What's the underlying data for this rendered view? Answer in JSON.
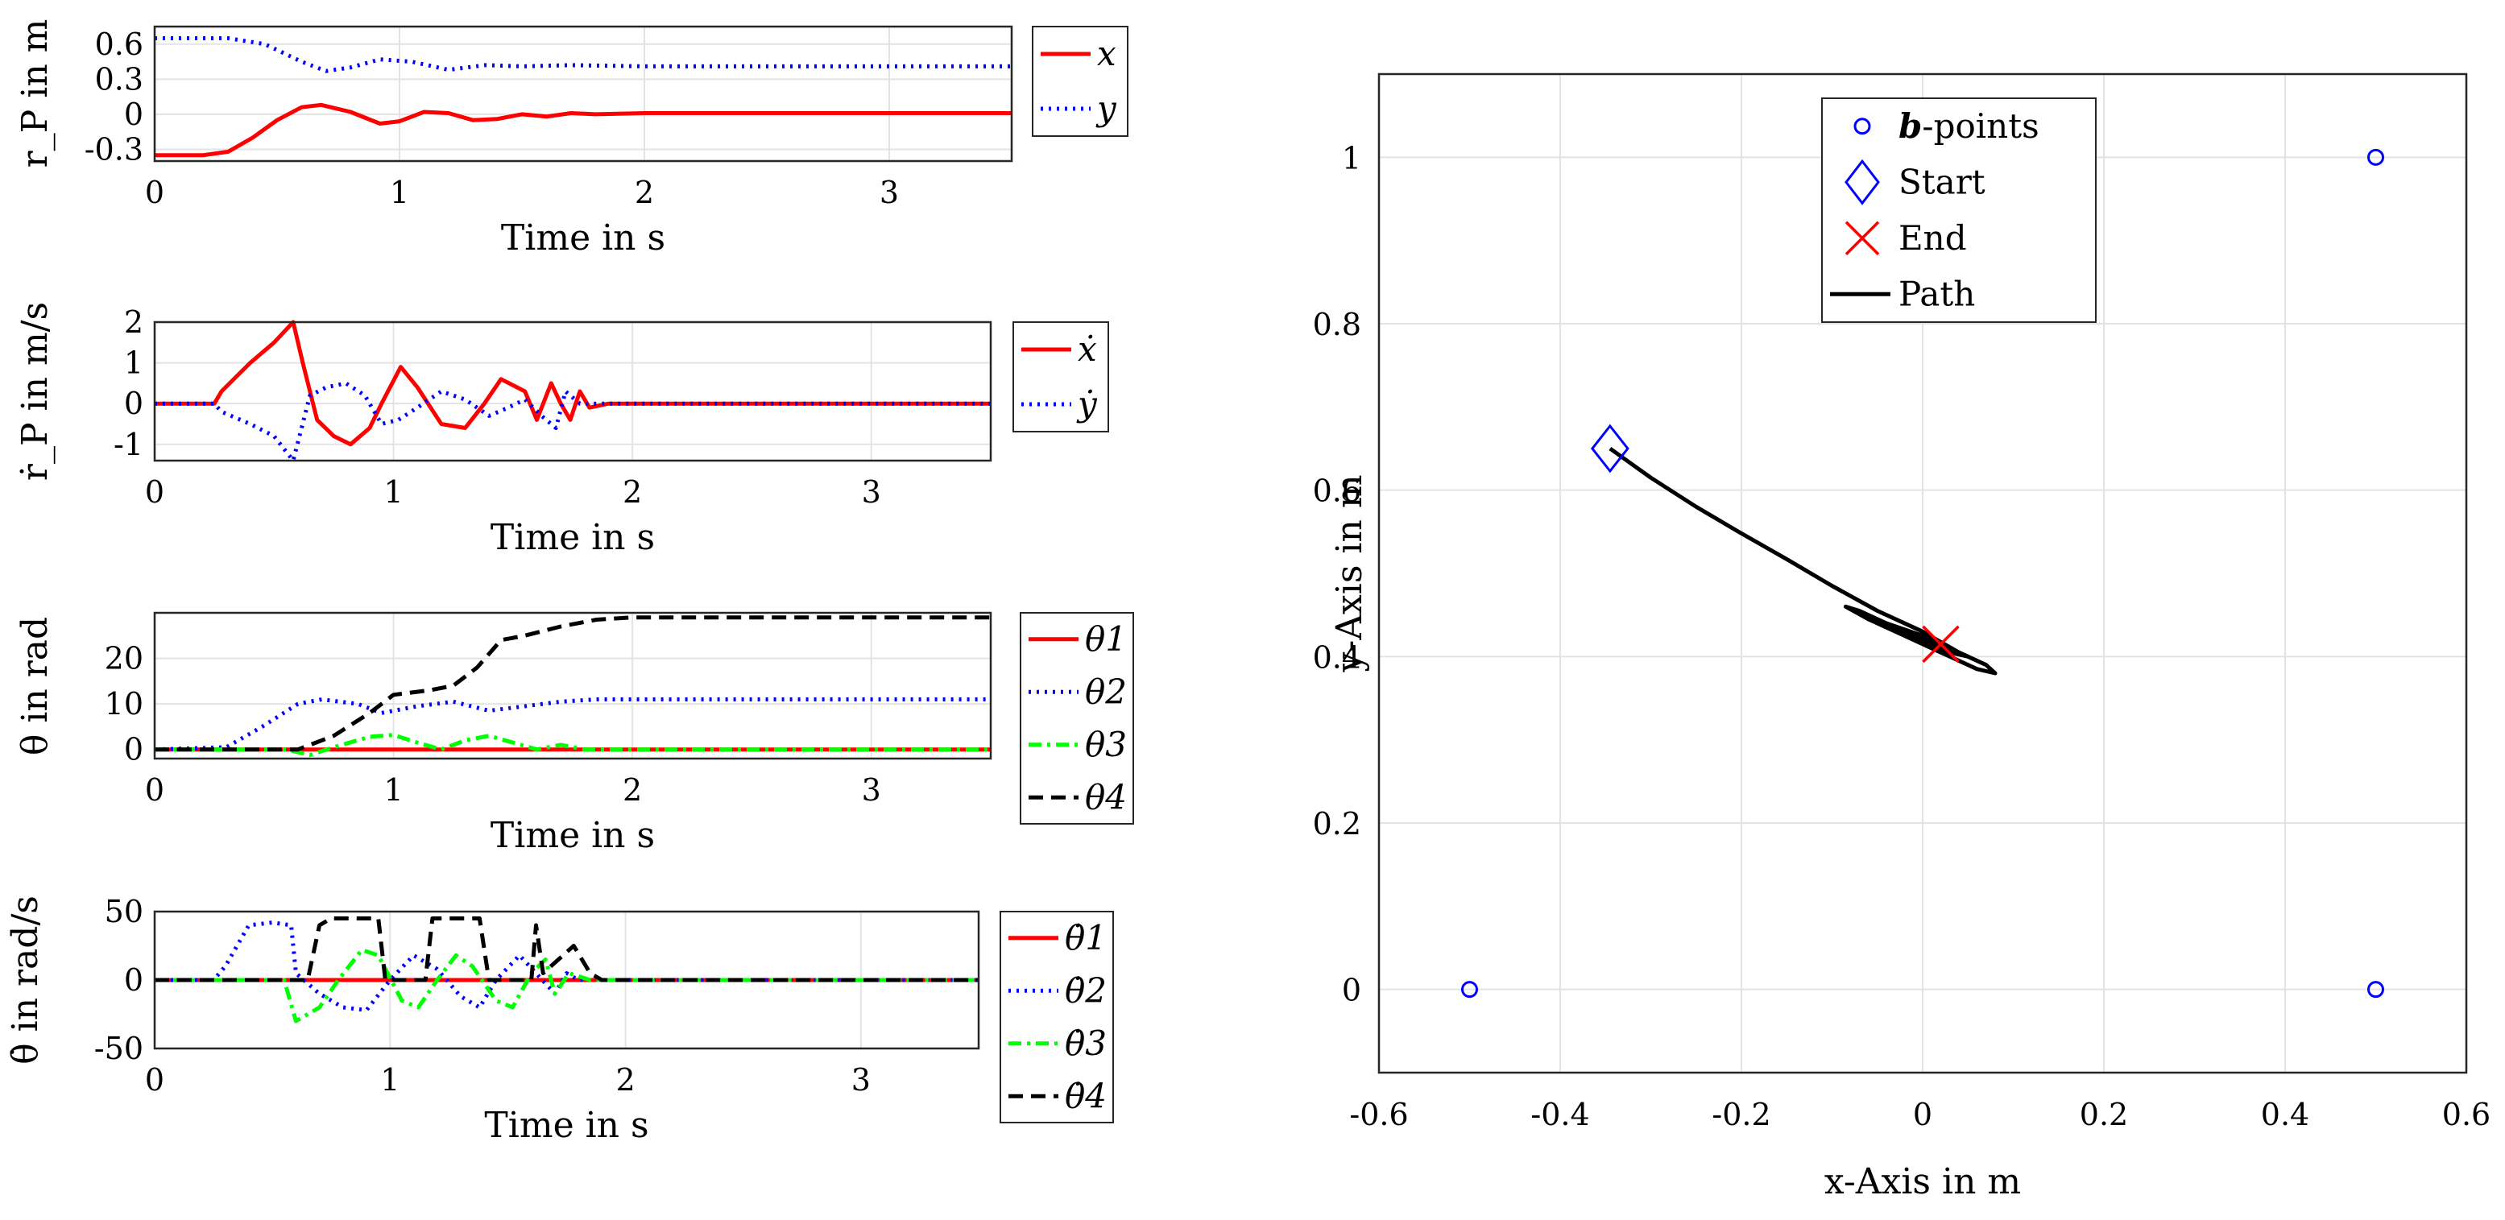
{
  "chart_data": [
    {
      "id": "rp",
      "type": "line",
      "ylabel": "r_P in m",
      "xlabel": "Time in s",
      "xlim": [
        0,
        3.5
      ],
      "ylim": [
        -0.4,
        0.75
      ],
      "xticks": [
        "0",
        "1",
        "2",
        "3"
      ],
      "yticks": [
        "-0.3",
        "0",
        "0.3",
        "0.6"
      ],
      "series": [
        {
          "name": "x",
          "color": "#ff0000",
          "style": "solid",
          "points": [
            [
              0,
              -0.35
            ],
            [
              0.2,
              -0.35
            ],
            [
              0.3,
              -0.32
            ],
            [
              0.4,
              -0.2
            ],
            [
              0.5,
              -0.05
            ],
            [
              0.6,
              0.06
            ],
            [
              0.68,
              0.08
            ],
            [
              0.8,
              0.02
            ],
            [
              0.92,
              -0.08
            ],
            [
              1.0,
              -0.06
            ],
            [
              1.1,
              0.02
            ],
            [
              1.2,
              0.01
            ],
            [
              1.3,
              -0.05
            ],
            [
              1.4,
              -0.04
            ],
            [
              1.5,
              0.0
            ],
            [
              1.6,
              -0.02
            ],
            [
              1.7,
              0.01
            ],
            [
              1.8,
              0.0
            ],
            [
              2.0,
              0.01
            ],
            [
              3.5,
              0.01
            ]
          ]
        },
        {
          "name": "y",
          "color": "#0000ff",
          "style": "dotted",
          "points": [
            [
              0,
              0.65
            ],
            [
              0.3,
              0.65
            ],
            [
              0.45,
              0.6
            ],
            [
              0.6,
              0.45
            ],
            [
              0.7,
              0.37
            ],
            [
              0.8,
              0.4
            ],
            [
              0.92,
              0.47
            ],
            [
              1.05,
              0.45
            ],
            [
              1.2,
              0.38
            ],
            [
              1.35,
              0.42
            ],
            [
              1.5,
              0.41
            ],
            [
              1.7,
              0.42
            ],
            [
              2.0,
              0.41
            ],
            [
              3.5,
              0.41
            ]
          ]
        }
      ]
    },
    {
      "id": "rpdot",
      "type": "line",
      "ylabel": "ṙ_P in m/s",
      "xlabel": "Time in s",
      "xlim": [
        0,
        3.5
      ],
      "ylim": [
        -1.4,
        2.0
      ],
      "xticks": [
        "0",
        "1",
        "2",
        "3"
      ],
      "yticks": [
        "-1",
        "0",
        "1",
        "2"
      ],
      "series": [
        {
          "name": "ẋ",
          "color": "#ff0000",
          "style": "solid",
          "points": [
            [
              0,
              0
            ],
            [
              0.25,
              0
            ],
            [
              0.28,
              0.3
            ],
            [
              0.4,
              1.0
            ],
            [
              0.5,
              1.5
            ],
            [
              0.58,
              2.0
            ],
            [
              0.62,
              1.0
            ],
            [
              0.68,
              -0.4
            ],
            [
              0.75,
              -0.8
            ],
            [
              0.82,
              -1.0
            ],
            [
              0.9,
              -0.6
            ],
            [
              0.95,
              0.0
            ],
            [
              1.03,
              0.9
            ],
            [
              1.1,
              0.4
            ],
            [
              1.2,
              -0.5
            ],
            [
              1.3,
              -0.6
            ],
            [
              1.38,
              0.0
            ],
            [
              1.45,
              0.6
            ],
            [
              1.55,
              0.3
            ],
            [
              1.6,
              -0.4
            ],
            [
              1.66,
              0.5
            ],
            [
              1.7,
              0.0
            ],
            [
              1.74,
              -0.4
            ],
            [
              1.78,
              0.3
            ],
            [
              1.82,
              -0.1
            ],
            [
              1.9,
              0.0
            ],
            [
              3.5,
              0.0
            ]
          ]
        },
        {
          "name": "ẏ",
          "color": "#0000ff",
          "style": "dotted",
          "points": [
            [
              0,
              0
            ],
            [
              0.25,
              0
            ],
            [
              0.28,
              -0.2
            ],
            [
              0.4,
              -0.5
            ],
            [
              0.5,
              -0.8
            ],
            [
              0.58,
              -1.4
            ],
            [
              0.65,
              0.2
            ],
            [
              0.72,
              0.4
            ],
            [
              0.8,
              0.5
            ],
            [
              0.88,
              0.2
            ],
            [
              0.95,
              -0.5
            ],
            [
              1.02,
              -0.4
            ],
            [
              1.1,
              -0.1
            ],
            [
              1.2,
              0.3
            ],
            [
              1.3,
              0.1
            ],
            [
              1.4,
              -0.3
            ],
            [
              1.48,
              -0.1
            ],
            [
              1.55,
              0.1
            ],
            [
              1.62,
              -0.3
            ],
            [
              1.68,
              -0.6
            ],
            [
              1.72,
              0.3
            ],
            [
              1.78,
              0.0
            ],
            [
              1.85,
              0.0
            ],
            [
              3.5,
              0.0
            ]
          ]
        }
      ]
    },
    {
      "id": "theta",
      "type": "line",
      "ylabel": "θ in rad",
      "xlabel": "Time in s",
      "xlim": [
        0,
        3.5
      ],
      "ylim": [
        -2,
        30
      ],
      "xticks": [
        "0",
        "1",
        "2",
        "3"
      ],
      "yticks": [
        "0",
        "10",
        "20"
      ],
      "series": [
        {
          "name": "θ1",
          "color": "#ff0000",
          "style": "solid",
          "points": [
            [
              0,
              0
            ],
            [
              3.5,
              0
            ]
          ]
        },
        {
          "name": "θ2",
          "color": "#0000ff",
          "style": "dotted",
          "points": [
            [
              0,
              0
            ],
            [
              0.3,
              0.5
            ],
            [
              0.45,
              5
            ],
            [
              0.6,
              10
            ],
            [
              0.7,
              11
            ],
            [
              0.85,
              10
            ],
            [
              0.95,
              8
            ],
            [
              1.1,
              9.5
            ],
            [
              1.25,
              10.5
            ],
            [
              1.4,
              8.5
            ],
            [
              1.55,
              9.5
            ],
            [
              1.7,
              10.5
            ],
            [
              1.85,
              11
            ],
            [
              2.0,
              11
            ],
            [
              3.5,
              11
            ]
          ]
        },
        {
          "name": "θ3",
          "color": "#00ff00",
          "style": "dashdot",
          "points": [
            [
              0,
              0
            ],
            [
              0.55,
              0
            ],
            [
              0.65,
              -1.2
            ],
            [
              0.75,
              0.5
            ],
            [
              0.9,
              2.8
            ],
            [
              1.0,
              3.2
            ],
            [
              1.1,
              1.5
            ],
            [
              1.2,
              0
            ],
            [
              1.3,
              2
            ],
            [
              1.4,
              3
            ],
            [
              1.5,
              1.5
            ],
            [
              1.6,
              0
            ],
            [
              1.7,
              1
            ],
            [
              1.8,
              0
            ],
            [
              3.5,
              0
            ]
          ]
        },
        {
          "name": "θ4",
          "color": "#000000",
          "style": "dashed",
          "points": [
            [
              0,
              0
            ],
            [
              0.6,
              0
            ],
            [
              0.75,
              3
            ],
            [
              0.9,
              8
            ],
            [
              1.0,
              12
            ],
            [
              1.15,
              13
            ],
            [
              1.25,
              14
            ],
            [
              1.35,
              18
            ],
            [
              1.45,
              24
            ],
            [
              1.55,
              25
            ],
            [
              1.7,
              27
            ],
            [
              1.85,
              28.5
            ],
            [
              2.0,
              29
            ],
            [
              3.5,
              29
            ]
          ]
        }
      ]
    },
    {
      "id": "thetadot",
      "type": "line",
      "ylabel": "θ̇ in rad/s",
      "xlabel": "Time in s",
      "xlim": [
        0,
        3.5
      ],
      "ylim": [
        -50,
        50
      ],
      "xticks": [
        "0",
        "1",
        "2",
        "3"
      ],
      "yticks": [
        "-50",
        "0",
        "50"
      ],
      "series": [
        {
          "name": "θ̇1",
          "color": "#ff0000",
          "style": "solid",
          "points": [
            [
              0,
              0
            ],
            [
              3.5,
              0
            ]
          ]
        },
        {
          "name": "θ̇2",
          "color": "#0000ff",
          "style": "dotted",
          "points": [
            [
              0,
              0
            ],
            [
              0.25,
              0
            ],
            [
              0.3,
              10
            ],
            [
              0.4,
              40
            ],
            [
              0.5,
              42
            ],
            [
              0.58,
              40
            ],
            [
              0.6,
              5
            ],
            [
              0.7,
              -10
            ],
            [
              0.8,
              -20
            ],
            [
              0.9,
              -22
            ],
            [
              1.0,
              0
            ],
            [
              1.1,
              18
            ],
            [
              1.2,
              8
            ],
            [
              1.3,
              -12
            ],
            [
              1.38,
              -20
            ],
            [
              1.45,
              0
            ],
            [
              1.55,
              18
            ],
            [
              1.62,
              5
            ],
            [
              1.7,
              -10
            ],
            [
              1.75,
              5
            ],
            [
              1.8,
              0
            ],
            [
              3.5,
              0
            ]
          ]
        },
        {
          "name": "θ̇3",
          "color": "#00ff00",
          "style": "dashdot",
          "points": [
            [
              0,
              0
            ],
            [
              0.55,
              0
            ],
            [
              0.6,
              -30
            ],
            [
              0.7,
              -20
            ],
            [
              0.78,
              0
            ],
            [
              0.88,
              22
            ],
            [
              0.95,
              18
            ],
            [
              1.05,
              -15
            ],
            [
              1.12,
              -20
            ],
            [
              1.2,
              0
            ],
            [
              1.28,
              18
            ],
            [
              1.35,
              10
            ],
            [
              1.45,
              -15
            ],
            [
              1.52,
              -20
            ],
            [
              1.6,
              5
            ],
            [
              1.66,
              15
            ],
            [
              1.7,
              -10
            ],
            [
              1.76,
              5
            ],
            [
              1.85,
              0
            ],
            [
              3.5,
              0
            ]
          ]
        },
        {
          "name": "θ̇4",
          "color": "#000000",
          "style": "dashed",
          "points": [
            [
              0,
              0
            ],
            [
              0.65,
              0
            ],
            [
              0.7,
              40
            ],
            [
              0.75,
              45
            ],
            [
              0.95,
              45
            ],
            [
              0.98,
              0
            ],
            [
              1.15,
              0
            ],
            [
              1.18,
              45
            ],
            [
              1.38,
              45
            ],
            [
              1.42,
              0
            ],
            [
              1.6,
              0
            ],
            [
              1.62,
              40
            ],
            [
              1.65,
              5
            ],
            [
              1.78,
              25
            ],
            [
              1.85,
              5
            ],
            [
              1.9,
              0
            ],
            [
              3.5,
              0
            ]
          ]
        }
      ]
    },
    {
      "id": "path",
      "type": "scatter",
      "xlabel": "x-Axis in m",
      "ylabel": "y-Axis in m",
      "xlim": [
        -0.6,
        0.6
      ],
      "ylim": [
        -0.1,
        1.1
      ],
      "xticks": [
        "-0.6",
        "-0.4",
        "-0.2",
        "0",
        "0.2",
        "0.4",
        "0.6"
      ],
      "yticks": [
        "0",
        "0.2",
        "0.4",
        "0.6",
        "0.8",
        "1"
      ],
      "bpoints": [
        [
          -0.5,
          0
        ],
        [
          0.5,
          0
        ],
        [
          0.5,
          1
        ]
      ],
      "start": [
        -0.345,
        0.65
      ],
      "end": [
        0.02,
        0.415
      ],
      "path": [
        [
          -0.345,
          0.65
        ],
        [
          -0.3,
          0.615
        ],
        [
          -0.25,
          0.58
        ],
        [
          -0.2,
          0.548
        ],
        [
          -0.15,
          0.517
        ],
        [
          -0.1,
          0.485
        ],
        [
          -0.05,
          0.455
        ],
        [
          0.0,
          0.43
        ],
        [
          0.04,
          0.405
        ],
        [
          0.07,
          0.39
        ],
        [
          0.08,
          0.38
        ],
        [
          0.06,
          0.385
        ],
        [
          0.02,
          0.405
        ],
        [
          -0.02,
          0.425
        ],
        [
          -0.06,
          0.445
        ],
        [
          -0.085,
          0.46
        ],
        [
          -0.07,
          0.455
        ],
        [
          -0.03,
          0.435
        ],
        [
          0.0,
          0.42
        ],
        [
          0.03,
          0.405
        ],
        [
          0.05,
          0.4
        ],
        [
          0.03,
          0.41
        ],
        [
          0.0,
          0.425
        ],
        [
          -0.04,
          0.44
        ],
        [
          -0.05,
          0.44
        ],
        [
          -0.02,
          0.43
        ],
        [
          0.01,
          0.415
        ],
        [
          0.03,
          0.41
        ],
        [
          0.015,
          0.415
        ]
      ],
      "legend": [
        "b-points",
        "Start",
        "End",
        "Path"
      ]
    }
  ]
}
